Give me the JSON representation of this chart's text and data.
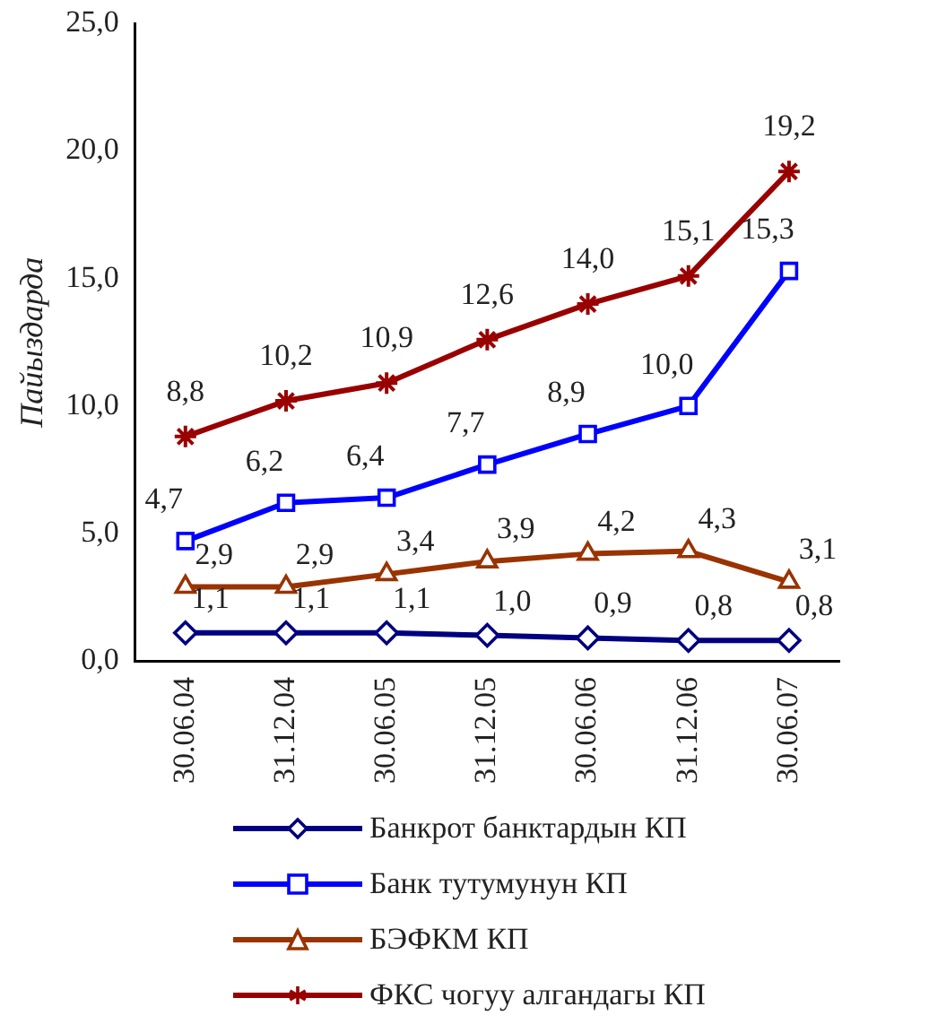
{
  "chart_data": {
    "type": "line",
    "ylabel": "Пайыздарда",
    "categories": [
      "30.06.04",
      "31.12.04",
      "30.06.05",
      "31.12.05",
      "30.06.06",
      "31.12.06",
      "30.06.07"
    ],
    "ylim": [
      0,
      25
    ],
    "yticks": [
      {
        "value": 0,
        "label": "0,0"
      },
      {
        "value": 5,
        "label": "5,0"
      },
      {
        "value": 10,
        "label": "10,0"
      },
      {
        "value": 15,
        "label": "15,0"
      },
      {
        "value": 20,
        "label": "20,0"
      },
      {
        "value": 25,
        "label": "25,0"
      }
    ],
    "grid": false,
    "legend": "bottom",
    "line_style": "solid",
    "series": [
      {
        "name": "Банкрот банктардын КП",
        "color": "#000080",
        "marker": "diamond",
        "values": [
          1.1,
          1.1,
          1.1,
          1.0,
          0.9,
          0.8,
          0.8
        ],
        "value_labels": [
          "1,1",
          "1,1",
          "1,1",
          "1,0",
          "0,9",
          "0,8",
          "0,8"
        ]
      },
      {
        "name": "Банк тутумунун КП",
        "color": "#0000ff",
        "marker": "square",
        "values": [
          4.7,
          6.2,
          6.4,
          7.7,
          8.9,
          10.0,
          15.3
        ],
        "value_labels": [
          "4,7",
          "6,2",
          "6,4",
          "7,7",
          "8,9",
          "10,0",
          "15,3"
        ]
      },
      {
        "name": "БЭФКМ КП",
        "color": "#993300",
        "marker": "triangle",
        "values": [
          2.9,
          2.9,
          3.4,
          3.9,
          4.2,
          4.3,
          3.1
        ],
        "value_labels": [
          "2,9",
          "2,9",
          "3,4",
          "3,9",
          "4,2",
          "4,3",
          "3,1"
        ]
      },
      {
        "name": "ФКС чогуу алгандагы КП",
        "color": "#990000",
        "marker": "cross",
        "values": [
          8.8,
          10.2,
          10.9,
          12.6,
          14.0,
          15.1,
          19.2
        ],
        "value_labels": [
          "8,8",
          "10,2",
          "10,9",
          "12,6",
          "14,0",
          "15,1",
          "19,2"
        ]
      }
    ]
  }
}
